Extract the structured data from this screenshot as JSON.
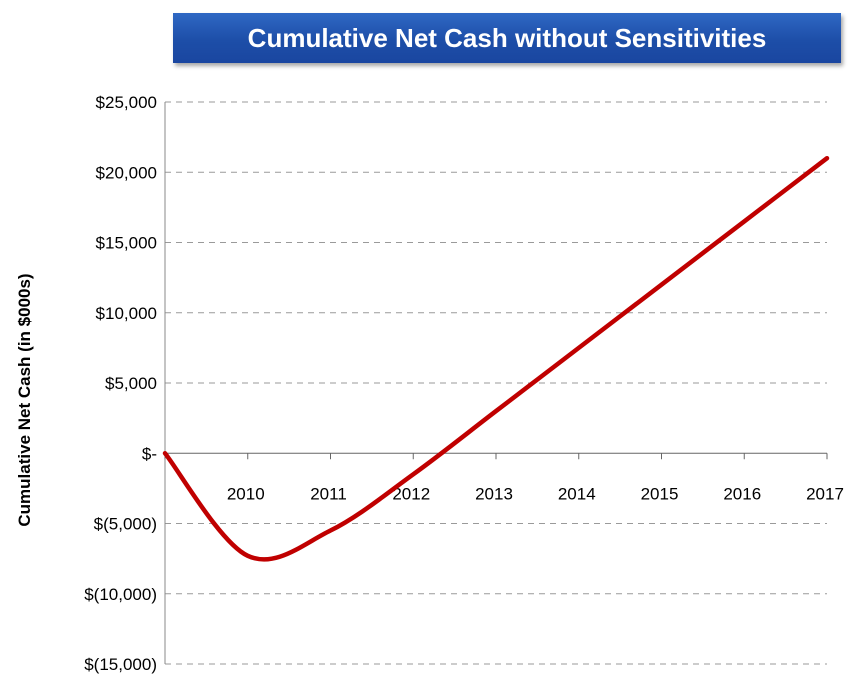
{
  "chart_data": {
    "type": "line",
    "title": "Cumulative Net Cash without Sensitivities",
    "xlabel": "",
    "ylabel": "Cumulative Net Cash (in $000s)",
    "x": [
      "",
      "2010",
      "2011",
      "2012",
      "2013",
      "2014",
      "2015",
      "2016",
      "2017"
    ],
    "y_tick_labels": [
      "$25,000",
      "$20,000",
      "$15,000",
      "$10,000",
      "$5,000",
      "$-",
      "$(5,000)",
      "$(10,000)",
      "$(15,000)"
    ],
    "y_ticks": [
      25000,
      20000,
      15000,
      10000,
      5000,
      0,
      -5000,
      -10000,
      -15000
    ],
    "ylim": [
      -15000,
      25000
    ],
    "grid": true,
    "series": [
      {
        "values": [
          0,
          -7300,
          -5500,
          -1500,
          3000,
          7500,
          12000,
          16500,
          21000
        ],
        "color": "#c00000"
      }
    ]
  }
}
